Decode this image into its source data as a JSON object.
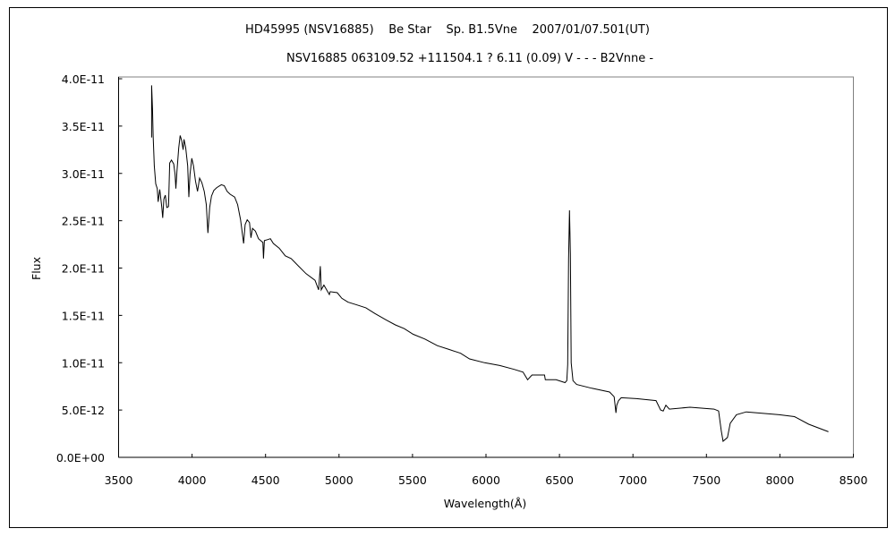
{
  "chart_data": {
    "type": "line",
    "title": "HD45995 (NSV16885)    Be Star    Sp. B1.5Vne    2007/01/07.501(UT)",
    "subtitle": "NSV16885 063109.52 +111504.1 ? 6.11 (0.09) V - - - B2Vnne -",
    "xlabel": "Wavelength(Å)",
    "ylabel": "Flux",
    "xlim": [
      3500,
      8500
    ],
    "ylim": [
      0,
      4e-11
    ],
    "xticks": [
      3500,
      4000,
      4500,
      5000,
      5500,
      6000,
      6500,
      7000,
      7500,
      8000,
      8500
    ],
    "xtick_labels": [
      "3500",
      "4000",
      "4500",
      "5000",
      "5500",
      "6000",
      "6500",
      "7000",
      "7500",
      "8000",
      "8500"
    ],
    "yticks": [
      0,
      5e-12,
      1e-11,
      1.5e-11,
      2e-11,
      2.5e-11,
      3e-11,
      3.5e-11,
      4e-11
    ],
    "ytick_labels": [
      "0.0E+00",
      "5.0E-12",
      "1.0E-11",
      "1.5E-11",
      "2.0E-11",
      "2.5E-11",
      "3.0E-11",
      "3.5E-11",
      "4.0E-11"
    ],
    "grid": false,
    "legend": "none",
    "flux_scale": 1e-11,
    "series": [
      {
        "name": "spectrum",
        "color": "#000000",
        "points": [
          [
            3725,
            3.38
          ],
          [
            3725,
            3.93
          ],
          [
            3731,
            3.68
          ],
          [
            3735,
            3.4
          ],
          [
            3743,
            3.08
          ],
          [
            3753,
            2.89
          ],
          [
            3763,
            2.84
          ],
          [
            3769,
            2.7
          ],
          [
            3780,
            2.83
          ],
          [
            3794,
            2.64
          ],
          [
            3800,
            2.53
          ],
          [
            3808,
            2.73
          ],
          [
            3818,
            2.77
          ],
          [
            3828,
            2.64
          ],
          [
            3840,
            2.65
          ],
          [
            3848,
            3.11
          ],
          [
            3860,
            3.14
          ],
          [
            3875,
            3.1
          ],
          [
            3884,
            2.99
          ],
          [
            3890,
            2.84
          ],
          [
            3897,
            3.02
          ],
          [
            3909,
            3.27
          ],
          [
            3919,
            3.4
          ],
          [
            3929,
            3.35
          ],
          [
            3939,
            3.25
          ],
          [
            3945,
            3.36
          ],
          [
            3957,
            3.27
          ],
          [
            3970,
            3.08
          ],
          [
            3978,
            2.75
          ],
          [
            3986,
            2.99
          ],
          [
            3998,
            3.16
          ],
          [
            4010,
            3.08
          ],
          [
            4023,
            2.92
          ],
          [
            4037,
            2.81
          ],
          [
            4051,
            2.95
          ],
          [
            4067,
            2.9
          ],
          [
            4083,
            2.81
          ],
          [
            4097,
            2.67
          ],
          [
            4108,
            2.37
          ],
          [
            4120,
            2.64
          ],
          [
            4132,
            2.76
          ],
          [
            4148,
            2.82
          ],
          [
            4168,
            2.85
          ],
          [
            4199,
            2.88
          ],
          [
            4219,
            2.87
          ],
          [
            4239,
            2.81
          ],
          [
            4259,
            2.78
          ],
          [
            4290,
            2.75
          ],
          [
            4310,
            2.67
          ],
          [
            4330,
            2.51
          ],
          [
            4351,
            2.26
          ],
          [
            4361,
            2.46
          ],
          [
            4375,
            2.51
          ],
          [
            4391,
            2.48
          ],
          [
            4401,
            2.32
          ],
          [
            4411,
            2.42
          ],
          [
            4431,
            2.39
          ],
          [
            4452,
            2.31
          ],
          [
            4482,
            2.27
          ],
          [
            4486,
            2.1
          ],
          [
            4492,
            2.29
          ],
          [
            4513,
            2.3
          ],
          [
            4533,
            2.31
          ],
          [
            4553,
            2.26
          ],
          [
            4593,
            2.21
          ],
          [
            4634,
            2.13
          ],
          [
            4674,
            2.1
          ],
          [
            4725,
            2.02
          ],
          [
            4776,
            1.94
          ],
          [
            4837,
            1.87
          ],
          [
            4861,
            1.77
          ],
          [
            4873,
            2.02
          ],
          [
            4879,
            1.77
          ],
          [
            4897,
            1.82
          ],
          [
            4934,
            1.72
          ],
          [
            4940,
            1.75
          ],
          [
            4988,
            1.74
          ],
          [
            5019,
            1.68
          ],
          [
            5061,
            1.64
          ],
          [
            5122,
            1.61
          ],
          [
            5183,
            1.58
          ],
          [
            5244,
            1.52
          ],
          [
            5323,
            1.45
          ],
          [
            5383,
            1.4
          ],
          [
            5444,
            1.36
          ],
          [
            5505,
            1.3
          ],
          [
            5584,
            1.25
          ],
          [
            5669,
            1.18
          ],
          [
            5748,
            1.14
          ],
          [
            5827,
            1.1
          ],
          [
            5888,
            1.04
          ],
          [
            5991,
            1.0
          ],
          [
            6094,
            0.97
          ],
          [
            6191,
            0.93
          ],
          [
            6252,
            0.9
          ],
          [
            6283,
            0.82
          ],
          [
            6313,
            0.87
          ],
          [
            6398,
            0.87
          ],
          [
            6404,
            0.82
          ],
          [
            6477,
            0.82
          ],
          [
            6538,
            0.79
          ],
          [
            6550,
            0.81
          ],
          [
            6556,
            0.98
          ],
          [
            6562,
            2.1
          ],
          [
            6568,
            2.61
          ],
          [
            6574,
            2.15
          ],
          [
            6580,
            1.0
          ],
          [
            6592,
            0.81
          ],
          [
            6617,
            0.77
          ],
          [
            6720,
            0.73
          ],
          [
            6841,
            0.69
          ],
          [
            6872,
            0.64
          ],
          [
            6884,
            0.47
          ],
          [
            6890,
            0.55
          ],
          [
            6902,
            0.6
          ],
          [
            6920,
            0.63
          ],
          [
            7024,
            0.62
          ],
          [
            7157,
            0.6
          ],
          [
            7188,
            0.5
          ],
          [
            7206,
            0.49
          ],
          [
            7224,
            0.55
          ],
          [
            7248,
            0.51
          ],
          [
            7388,
            0.53
          ],
          [
            7552,
            0.51
          ],
          [
            7583,
            0.49
          ],
          [
            7601,
            0.28
          ],
          [
            7613,
            0.17
          ],
          [
            7643,
            0.21
          ],
          [
            7662,
            0.36
          ],
          [
            7704,
            0.45
          ],
          [
            7771,
            0.48
          ],
          [
            7996,
            0.45
          ],
          [
            8099,
            0.43
          ],
          [
            8196,
            0.35
          ],
          [
            8330,
            0.27
          ]
        ]
      }
    ]
  }
}
